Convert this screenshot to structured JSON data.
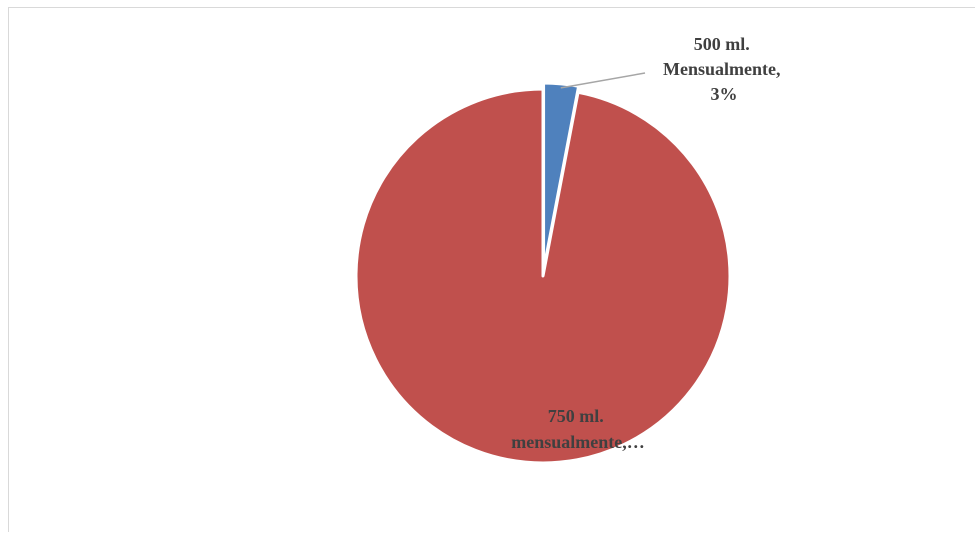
{
  "chart_data": {
    "type": "pie",
    "slices": [
      {
        "label_lines": [
          "500  ml.",
          "Mensualmente,",
          "3%"
        ],
        "value": 3,
        "color": "#4f81bd"
      },
      {
        "label_lines": [
          "750 ml.",
          "mensualmente,…"
        ],
        "value": 97,
        "color": "#c0504d"
      }
    ],
    "colors": {
      "leader_line": "#a6a6a6",
      "slice_border": "#ffffff",
      "label_text": "#404040"
    }
  }
}
